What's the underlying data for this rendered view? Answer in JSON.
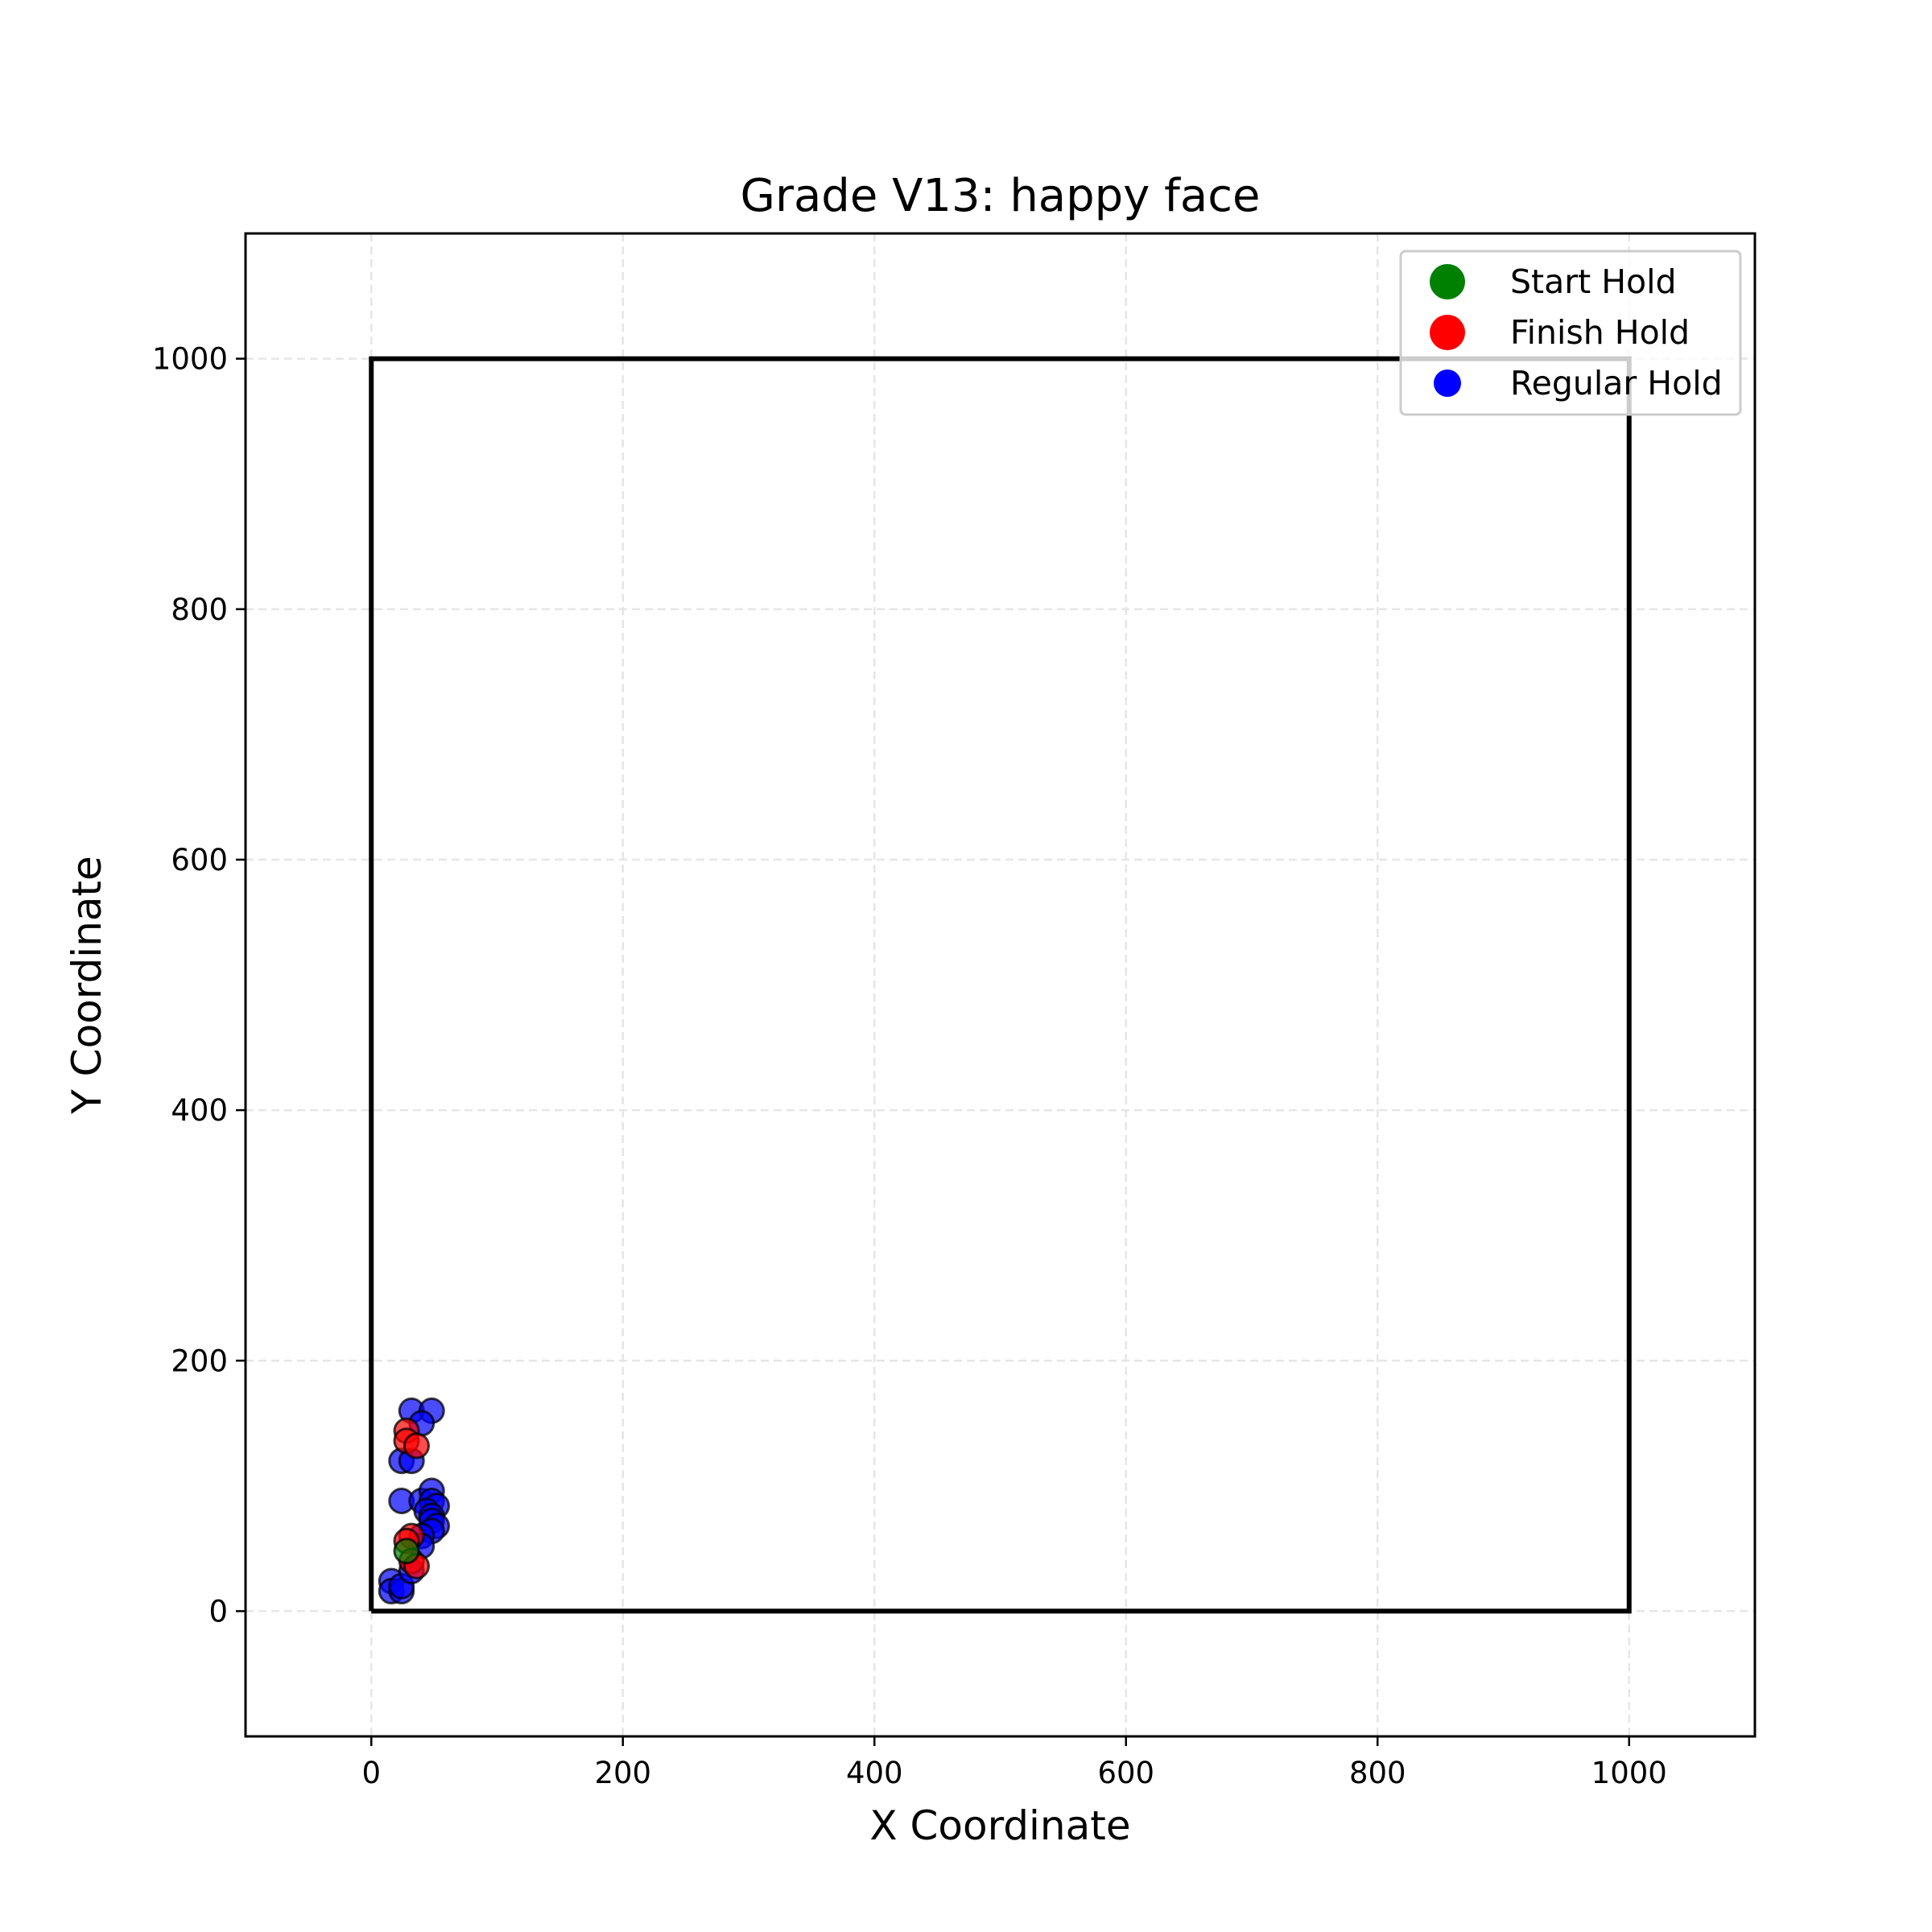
{
  "chart_data": {
    "type": "scatter",
    "title": "Grade V13: happy face",
    "xlabel": "X Coordinate",
    "ylabel": "Y Coordinate",
    "xlim": [
      -100,
      1100
    ],
    "ylim": [
      -100,
      1100
    ],
    "xticks": [
      0,
      200,
      400,
      600,
      800,
      1000
    ],
    "yticks": [
      0,
      200,
      400,
      600,
      800,
      1000
    ],
    "grid": true,
    "legend_position": "top-right",
    "board_outline": {
      "x": [
        0,
        1000,
        1000,
        0,
        0
      ],
      "y": [
        0,
        0,
        1000,
        1000,
        0
      ],
      "color": "#000000"
    },
    "series": [
      {
        "name": "Regular Hold",
        "color": "#0000ff",
        "points": [
          [
            32,
            160
          ],
          [
            48,
            160
          ],
          [
            40,
            150
          ],
          [
            24,
            120
          ],
          [
            32,
            120
          ],
          [
            24,
            88
          ],
          [
            40,
            88
          ],
          [
            48,
            96
          ],
          [
            48,
            88
          ],
          [
            52,
            84
          ],
          [
            44,
            80
          ],
          [
            48,
            76
          ],
          [
            48,
            72
          ],
          [
            52,
            68
          ],
          [
            48,
            64
          ],
          [
            40,
            60
          ],
          [
            40,
            52
          ],
          [
            16,
            24
          ],
          [
            16,
            16
          ],
          [
            24,
            16
          ],
          [
            24,
            20
          ],
          [
            32,
            32
          ]
        ]
      },
      {
        "name": "Finish Hold",
        "color": "#ff0000",
        "points": [
          [
            28,
            144
          ],
          [
            28,
            136
          ],
          [
            36,
            132
          ],
          [
            32,
            60
          ],
          [
            28,
            56
          ],
          [
            32,
            40
          ],
          [
            36,
            36
          ]
        ]
      },
      {
        "name": "Start Hold",
        "color": "#008000",
        "points": [
          [
            28,
            48
          ]
        ]
      }
    ]
  }
}
